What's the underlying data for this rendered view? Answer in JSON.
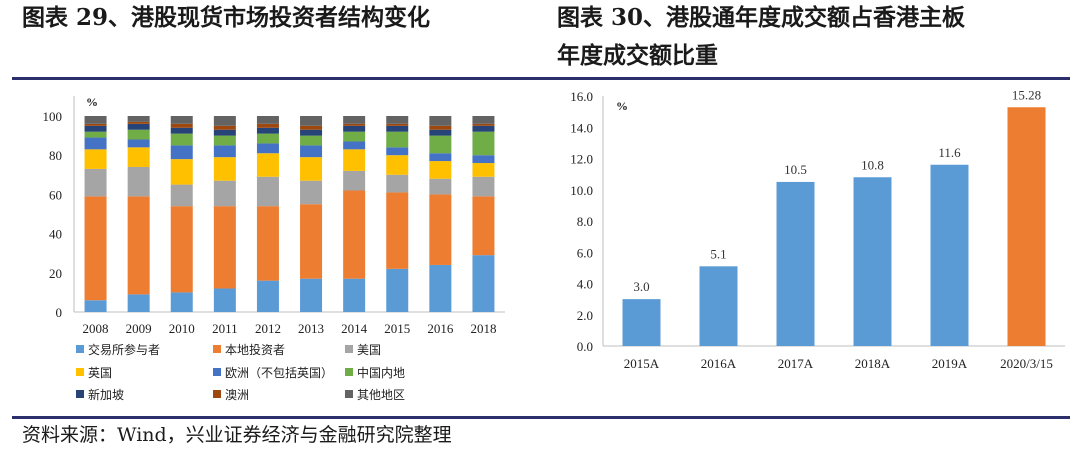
{
  "titles": {
    "left": "图表 29、港股现货市场投资者结构变化",
    "right_line1": "图表 30、港股通年度成交额占香港主板",
    "right_line2": "年度成交额比重"
  },
  "source": "资料来源：Wind，兴业证券经济与金融研究院整理",
  "colors": {
    "rule": "#2b2f6c",
    "交易所参与者": "#5b9bd5",
    "本地投资者": "#ed7d31",
    "美国": "#a5a5a5",
    "英国": "#ffc000",
    "欧洲（不包括英国）": "#4472c4",
    "中国内地": "#70ad47",
    "新加坡": "#264478",
    "澳洲": "#9e480e",
    "其他地区": "#636363",
    "bar_blue": "#5b9bd5",
    "bar_orange": "#ed7d31"
  },
  "chart_data": [
    {
      "type": "bar",
      "stacked": true,
      "title": "港股现货市场投资者结构变化",
      "ylabel": "%",
      "ylim": [
        0,
        100
      ],
      "yticks": [
        0,
        20,
        40,
        60,
        80,
        100
      ],
      "categories": [
        "2008",
        "2009",
        "2010",
        "2011",
        "2012",
        "2013",
        "2014",
        "2015",
        "2016",
        "2018"
      ],
      "series": [
        {
          "name": "交易所参与者",
          "values": [
            6,
            9,
            10,
            12,
            16,
            17,
            17,
            22,
            24,
            29
          ]
        },
        {
          "name": "本地投资者",
          "values": [
            53,
            50,
            44,
            42,
            38,
            38,
            45,
            39,
            36,
            30
          ]
        },
        {
          "name": "美国",
          "values": [
            14,
            15,
            11,
            13,
            15,
            12,
            10,
            9,
            8,
            10
          ]
        },
        {
          "name": "英国",
          "values": [
            10,
            10,
            13,
            12,
            12,
            12,
            11,
            10,
            9,
            7
          ]
        },
        {
          "name": "欧洲（不包括英国）",
          "values": [
            6,
            4,
            7,
            6,
            5,
            6,
            4,
            4,
            4,
            4
          ]
        },
        {
          "name": "中国内地",
          "values": [
            3,
            5,
            6,
            5,
            5,
            5,
            5,
            8,
            9,
            12
          ]
        },
        {
          "name": "新加坡",
          "values": [
            3,
            3,
            3,
            3,
            3,
            3,
            3,
            3,
            3,
            3
          ]
        },
        {
          "name": "澳洲",
          "values": [
            1,
            1,
            2,
            2,
            2,
            2,
            1,
            1,
            2,
            1
          ]
        },
        {
          "name": "其他地区",
          "values": [
            4,
            3,
            4,
            5,
            4,
            5,
            4,
            4,
            5,
            4
          ]
        }
      ],
      "legend": [
        [
          "交易所参与者",
          "本地投资者",
          "美国"
        ],
        [
          "英国",
          "欧洲（不包括英国）",
          "中国内地"
        ],
        [
          "新加坡",
          "澳洲",
          "其他地区"
        ]
      ]
    },
    {
      "type": "bar",
      "title": "港股通年度成交额占香港主板年度成交额比重",
      "ylabel": "%",
      "ylim": [
        0,
        16
      ],
      "yticks": [
        "0.0",
        "2.0",
        "4.0",
        "6.0",
        "8.0",
        "10.0",
        "12.0",
        "14.0",
        "16.0"
      ],
      "categories": [
        "2015A",
        "2016A",
        "2017A",
        "2018A",
        "2019A",
        "2020/3/15"
      ],
      "values": [
        3.0,
        5.1,
        10.5,
        10.8,
        11.6,
        15.28
      ],
      "data_labels": [
        "3.0",
        "5.1",
        "10.5",
        "10.8",
        "11.6",
        "15.28"
      ],
      "highlight_last": true
    }
  ]
}
